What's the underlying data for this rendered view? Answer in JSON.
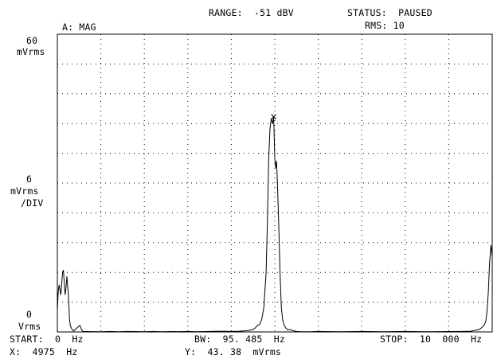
{
  "header": {
    "trace_label": "A: MAG",
    "range": "RANGE:  -51 dBV",
    "status": "STATUS:  PAUSED",
    "rms": "RMS: 10"
  },
  "axis_labels": {
    "top_value": "60",
    "top_unit": "mVrms",
    "mid_value": "6",
    "mid_unit": "mVrms",
    "mid_div": "/DIV",
    "bottom_value": "0",
    "bottom_unit": "Vrms"
  },
  "footer": {
    "start": "START:  0  Hz",
    "bw": "BW:  95. 485  Hz",
    "stop": "STOP:  10  000  Hz",
    "marker_x": "X:  4975  Hz",
    "marker_y": "Y:  43. 38  mVrms"
  },
  "chart_data": {
    "type": "line",
    "title": "",
    "xlabel": "",
    "ylabel": "",
    "xlim": [
      0,
      10000
    ],
    "ylim": [
      0,
      60
    ],
    "x_divisions": 10,
    "y_divisions": 10,
    "grid": true,
    "marker": {
      "x": 4975,
      "y": 43.38,
      "symbol": "x"
    },
    "series": [
      {
        "x": [
          0,
          20,
          40,
          60,
          80,
          100,
          120,
          140,
          160,
          180,
          200,
          220,
          240,
          260,
          280,
          300,
          320,
          340,
          360,
          380,
          400,
          500,
          520,
          540,
          560,
          580,
          600,
          700,
          800,
          1000,
          1200,
          1400,
          1600,
          1800,
          2000,
          2200,
          2400,
          2600,
          2800,
          3000,
          3200,
          3400,
          3600,
          3800,
          4000,
          4200,
          4400,
          4500,
          4550,
          4600,
          4650,
          4700,
          4750,
          4800,
          4830,
          4860,
          4890,
          4920,
          4950,
          4975,
          5000,
          5020,
          5040,
          5060,
          5090,
          5120,
          5150,
          5180,
          5210,
          5250,
          5300,
          5350,
          5400,
          5450,
          5500,
          5600,
          5800,
          6000,
          6500,
          7000,
          7500,
          8000,
          8500,
          9000,
          9300,
          9500,
          9600,
          9700,
          9750,
          9800,
          9850,
          9880,
          9910,
          9940,
          9970,
          10000
        ],
        "values": [
          4.5,
          8.0,
          9.5,
          8.5,
          7.5,
          9.8,
          12.0,
          12.5,
          10.0,
          7.5,
          9.0,
          11.2,
          9.0,
          6.5,
          2.5,
          1.2,
          0.8,
          0.5,
          0.3,
          0.2,
          0.4,
          1.2,
          1.3,
          0.8,
          0.4,
          0.2,
          0.1,
          0.08,
          0.06,
          0.05,
          0.1,
          0.05,
          0.1,
          0.08,
          0.05,
          0.1,
          0.05,
          0.08,
          0.06,
          0.1,
          0.05,
          0.08,
          0.12,
          0.15,
          0.1,
          0.15,
          0.3,
          0.5,
          0.8,
          1.3,
          1.5,
          2.5,
          5.0,
          12.0,
          22.0,
          35.0,
          41.0,
          43.0,
          42.0,
          43.38,
          35.0,
          33.0,
          34.5,
          30.0,
          22.0,
          12.0,
          5.0,
          2.5,
          1.5,
          0.8,
          0.4,
          0.5,
          0.3,
          0.2,
          0.1,
          0.05,
          0.05,
          0.1,
          0.05,
          0.1,
          0.05,
          0.1,
          0.05,
          0.08,
          0.1,
          0.15,
          0.3,
          0.5,
          0.8,
          1.2,
          2.0,
          4.0,
          8.0,
          14.0,
          17.5,
          15.0
        ]
      }
    ]
  }
}
